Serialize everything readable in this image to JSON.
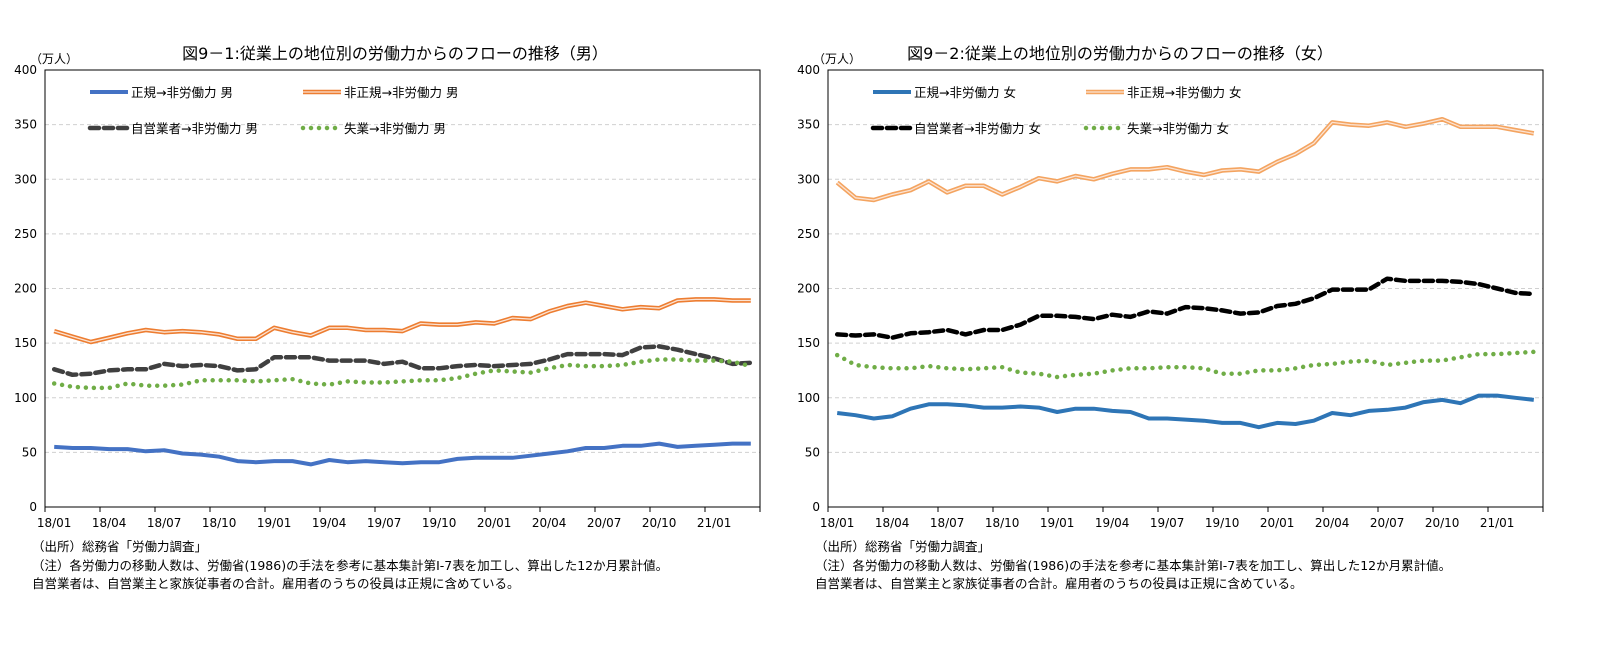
{
  "chart_data": [
    {
      "type": "line",
      "title": "図9－1:従業上の地位別の労働力からのフローの推移（男）",
      "ylabel": "（万人）",
      "ylim": [
        0,
        400
      ],
      "yticks": [
        0,
        50,
        100,
        150,
        200,
        250,
        300,
        350,
        400
      ],
      "grid": true,
      "legend": "top-left",
      "x": [
        "18/01",
        "18/02",
        "18/03",
        "18/04",
        "18/05",
        "18/06",
        "18/07",
        "18/08",
        "18/09",
        "18/10",
        "18/11",
        "18/12",
        "19/01",
        "19/02",
        "19/03",
        "19/04",
        "19/05",
        "19/06",
        "19/07",
        "19/08",
        "19/09",
        "19/10",
        "19/11",
        "19/12",
        "20/01",
        "20/02",
        "20/03",
        "20/04",
        "20/05",
        "20/06",
        "20/07",
        "20/08",
        "20/09",
        "20/10",
        "20/11",
        "20/12",
        "21/01",
        "21/02",
        "21/03"
      ],
      "xtick_labels": [
        "18/01",
        "18/04",
        "18/07",
        "18/10",
        "19/01",
        "19/04",
        "19/07",
        "19/10",
        "20/01",
        "20/04",
        "20/07",
        "20/10",
        "21/01"
      ],
      "series": [
        {
          "name": "正規→非労働力 男",
          "color": "#4472C4",
          "style": "solid",
          "values": [
            55,
            54,
            54,
            53,
            53,
            51,
            52,
            49,
            48,
            46,
            42,
            41,
            42,
            42,
            39,
            43,
            41,
            42,
            41,
            40,
            41,
            41,
            44,
            45,
            45,
            45,
            47,
            49,
            51,
            54,
            54,
            56,
            56,
            58,
            55,
            56,
            57,
            58,
            58
          ]
        },
        {
          "name": "非正規→非労働力 男",
          "color": "#ED7D31",
          "style": "double",
          "values": [
            161,
            156,
            151,
            155,
            159,
            162,
            160,
            161,
            160,
            158,
            154,
            154,
            164,
            160,
            157,
            164,
            164,
            162,
            162,
            161,
            168,
            167,
            167,
            169,
            168,
            173,
            172,
            179,
            184,
            187,
            184,
            181,
            183,
            182,
            189,
            190,
            190,
            189,
            189
          ]
        },
        {
          "name": "自営業者→非労働力 男",
          "color": "#404040",
          "style": "dashed",
          "values": [
            126,
            121,
            122,
            125,
            126,
            126,
            131,
            129,
            130,
            129,
            125,
            126,
            137,
            137,
            137,
            134,
            134,
            134,
            131,
            133,
            127,
            127,
            129,
            130,
            129,
            130,
            131,
            135,
            140,
            140,
            140,
            139,
            146,
            147,
            144,
            140,
            136,
            131,
            132
          ]
        },
        {
          "name": "失業→非労働力 男",
          "color": "#70AD47",
          "style": "dotted",
          "values": [
            113,
            110,
            109,
            109,
            113,
            111,
            111,
            112,
            116,
            116,
            116,
            115,
            116,
            117,
            113,
            112,
            115,
            114,
            114,
            115,
            116,
            116,
            118,
            122,
            125,
            124,
            123,
            127,
            130,
            129,
            129,
            130,
            133,
            135,
            135,
            134,
            134,
            133,
            129
          ]
        }
      ],
      "notes": [
        "（出所）総務省「労働力調査」",
        "（注）各労働力の移動人数は、労働省(1986)の手法を参考に基本集計第I-7表を加工し、算出した12か月累計値。",
        "自営業者は、自営業主と家族従事者の合計。雇用者のうちの役員は正規に含めている。"
      ]
    },
    {
      "type": "line",
      "title": "図9－2:従業上の地位別の労働力からのフローの推移（女）",
      "ylabel": "（万人）",
      "ylim": [
        0,
        400
      ],
      "yticks": [
        0,
        50,
        100,
        150,
        200,
        250,
        300,
        350,
        400
      ],
      "grid": true,
      "legend": "top-left",
      "x": [
        "18/01",
        "18/02",
        "18/03",
        "18/04",
        "18/05",
        "18/06",
        "18/07",
        "18/08",
        "18/09",
        "18/10",
        "18/11",
        "18/12",
        "19/01",
        "19/02",
        "19/03",
        "19/04",
        "19/05",
        "19/06",
        "19/07",
        "19/08",
        "19/09",
        "19/10",
        "19/11",
        "19/12",
        "20/01",
        "20/02",
        "20/03",
        "20/04",
        "20/05",
        "20/06",
        "20/07",
        "20/08",
        "20/09",
        "20/10",
        "20/11",
        "20/12",
        "21/01",
        "21/02",
        "21/03"
      ],
      "xtick_labels": [
        "18/01",
        "18/04",
        "18/07",
        "18/10",
        "19/01",
        "19/04",
        "19/07",
        "19/10",
        "20/01",
        "20/04",
        "20/07",
        "20/10",
        "21/01"
      ],
      "series": [
        {
          "name": "正規→非労働力 女",
          "color": "#2E75B6",
          "style": "solid",
          "values": [
            86,
            84,
            81,
            83,
            90,
            94,
            94,
            93,
            91,
            91,
            92,
            91,
            87,
            90,
            90,
            88,
            87,
            81,
            81,
            80,
            79,
            77,
            77,
            73,
            77,
            76,
            79,
            86,
            84,
            88,
            89,
            91,
            96,
            98,
            95,
            102,
            102,
            100,
            98
          ]
        },
        {
          "name": "非正規→非労働力 女",
          "color": "#F4A460",
          "style": "double",
          "values": [
            297,
            283,
            281,
            286,
            290,
            298,
            288,
            294,
            294,
            286,
            293,
            301,
            298,
            303,
            300,
            305,
            309,
            309,
            311,
            307,
            304,
            308,
            309,
            307,
            316,
            323,
            333,
            352,
            350,
            349,
            352,
            348,
            351,
            355,
            348,
            348,
            348,
            345,
            342
          ]
        },
        {
          "name": "自営業者→非労働力 女",
          "color": "#000000",
          "style": "dashed",
          "values": [
            158,
            157,
            158,
            155,
            159,
            160,
            162,
            158,
            162,
            162,
            167,
            175,
            175,
            174,
            172,
            176,
            174,
            179,
            177,
            183,
            182,
            180,
            177,
            178,
            184,
            186,
            191,
            199,
            199,
            199,
            209,
            207,
            207,
            207,
            206,
            204,
            200,
            196,
            195
          ]
        },
        {
          "name": "失業→非労働力 女",
          "color": "#70AD47",
          "style": "dotted",
          "values": [
            139,
            130,
            128,
            127,
            127,
            129,
            127,
            126,
            127,
            128,
            123,
            122,
            119,
            121,
            122,
            125,
            127,
            127,
            128,
            128,
            127,
            122,
            122,
            125,
            125,
            127,
            130,
            131,
            133,
            134,
            130,
            132,
            134,
            134,
            137,
            140,
            140,
            141,
            142
          ]
        }
      ],
      "notes": [
        "（出所）総務省「労働力調査」",
        "（注）各労働力の移動人数は、労働省(1986)の手法を参考に基本集計第I-7表を加工し、算出した12か月累計値。",
        "自営業者は、自営業主と家族従事者の合計。雇用者のうちの役員は正規に含めている。"
      ]
    }
  ]
}
